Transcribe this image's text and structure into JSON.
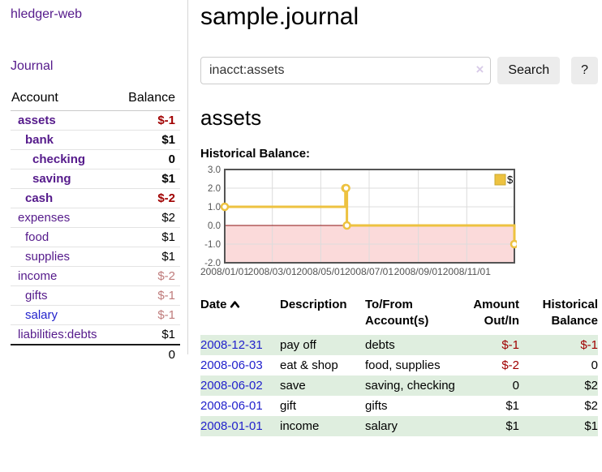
{
  "app": {
    "title": "hledger-web"
  },
  "sidebar": {
    "journal_link": "Journal",
    "accounts": {
      "headers": [
        "Account",
        "Balance"
      ],
      "rows": [
        {
          "name": "assets",
          "balance": "$-1",
          "depth": 1,
          "in_acct": true
        },
        {
          "name": "bank",
          "balance": "$1",
          "depth": 2,
          "in_acct": true
        },
        {
          "name": "checking",
          "balance": "0",
          "depth": 3,
          "in_acct": true
        },
        {
          "name": "saving",
          "balance": "$1",
          "depth": 3,
          "in_acct": true
        },
        {
          "name": "cash",
          "balance": "$-2",
          "depth": 2,
          "in_acct": true
        },
        {
          "name": "expenses",
          "balance": "$2",
          "depth": 1,
          "in_acct": false
        },
        {
          "name": "food",
          "balance": "$1",
          "depth": 2,
          "in_acct": false
        },
        {
          "name": "supplies",
          "balance": "$1",
          "depth": 2,
          "in_acct": false
        },
        {
          "name": "income",
          "balance": "$-2",
          "depth": 1,
          "in_acct": false
        },
        {
          "name": "gifts",
          "balance": "$-1",
          "depth": 2,
          "in_acct": false
        },
        {
          "name": "salary",
          "balance": "$-1",
          "depth": 2,
          "in_acct": false,
          "unvisited": true
        },
        {
          "name": "liabilities:debts",
          "balance": "$1",
          "depth": 1,
          "in_acct": false
        }
      ],
      "total_balance": "0"
    }
  },
  "header": {
    "title": "sample.journal"
  },
  "search": {
    "value": "inacct:assets",
    "clear_icon": "×",
    "button_label": "Search",
    "help_label": "?"
  },
  "account_page": {
    "title": "assets",
    "chart_label": "Historical Balance:"
  },
  "chart_data": {
    "type": "line",
    "step": true,
    "series": [
      {
        "name": "$",
        "color": "#edc240",
        "points": [
          [
            "2008-01-01",
            1
          ],
          [
            "2008-06-01",
            2
          ],
          [
            "2008-06-02",
            2
          ],
          [
            "2008-06-03",
            0
          ],
          [
            "2008-12-31",
            -1
          ]
        ]
      }
    ],
    "x_range": [
      "2008-01-01",
      "2008-12-31"
    ],
    "x_ticks": [
      {
        "date": "2008-01-01",
        "label": "2008/01/01"
      },
      {
        "date": "2008-03-01",
        "label": "2008/03/01"
      },
      {
        "date": "2008-05-01",
        "label": "2008/05/01"
      },
      {
        "date": "2008-07-01",
        "label": "2008/07/01"
      },
      {
        "date": "2008-09-01",
        "label": "2008/09/01"
      },
      {
        "date": "2008-11-01",
        "label": "2008/11/01"
      }
    ],
    "y_ticks": [
      "3.0",
      "2.0",
      "1.0",
      "0.0",
      "-1.0",
      "-2.0"
    ],
    "ylim": [
      -2,
      3
    ],
    "grid": true,
    "grid_color": "#dcdcdc",
    "border_color": "#545454",
    "tick_label_color": "#545454",
    "negative_fill": "#fbdada",
    "zero_line_color": "#8b1010",
    "legend": {
      "label": "$",
      "position": "top-right"
    }
  },
  "register": {
    "headers": {
      "date": "Date",
      "date_sort_icon": "caret-up",
      "description": "Description",
      "accounts": "To/From Account(s)",
      "amount": "Amount Out/In",
      "balance": "Historical Balance"
    },
    "rows": [
      {
        "date": "2008-12-31",
        "description": "pay off",
        "accounts": "debts",
        "amount": "$-1",
        "balance": "$-1"
      },
      {
        "date": "2008-06-03",
        "description": "eat & shop",
        "accounts": "food, supplies",
        "amount": "$-2",
        "balance": "0"
      },
      {
        "date": "2008-06-02",
        "description": "save",
        "accounts": "saving, checking",
        "amount": "0",
        "balance": "$2"
      },
      {
        "date": "2008-06-01",
        "description": "gift",
        "accounts": "gifts",
        "amount": "$1",
        "balance": "$2"
      },
      {
        "date": "2008-01-01",
        "description": "income",
        "accounts": "salary",
        "amount": "$1",
        "balance": "$1"
      }
    ]
  },
  "colors": {
    "link_purple": "#551a8b",
    "link_blue": "#2222cc",
    "negative_strong": "#a00000",
    "negative_soft": "#bf7b7b",
    "row_stripe_green": "#dfeedf",
    "series_gold": "#edc240"
  }
}
